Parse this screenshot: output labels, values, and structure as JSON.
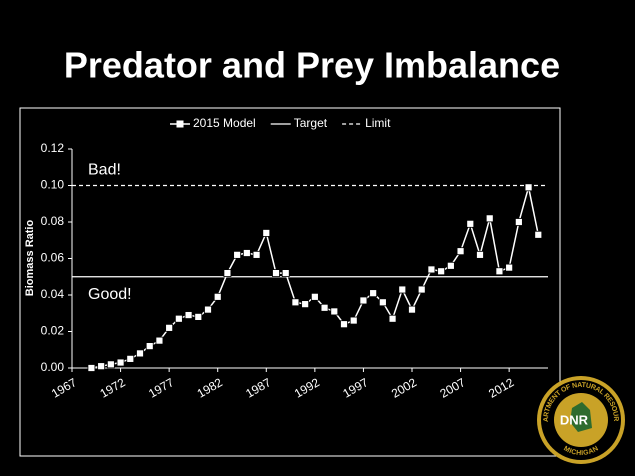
{
  "chart_data": {
    "type": "line",
    "title": "Predator and Prey Imbalance",
    "y_label": "Biomass Ratio",
    "x": [
      1969,
      1970,
      1971,
      1972,
      1973,
      1974,
      1975,
      1976,
      1977,
      1978,
      1979,
      1980,
      1981,
      1982,
      1983,
      1984,
      1985,
      1986,
      1987,
      1988,
      1989,
      1990,
      1991,
      1992,
      1993,
      1994,
      1995,
      1996,
      1997,
      1998,
      1999,
      2000,
      2001,
      2002,
      2003,
      2004,
      2005,
      2006,
      2007,
      2008,
      2009,
      2010,
      2011,
      2012,
      2013,
      2014,
      2015
    ],
    "series": [
      {
        "name": "2015 Model",
        "color": "#ffffff",
        "values": [
          0.0,
          0.001,
          0.002,
          0.003,
          0.005,
          0.008,
          0.012,
          0.015,
          0.022,
          0.027,
          0.029,
          0.028,
          0.032,
          0.039,
          0.052,
          0.062,
          0.063,
          0.062,
          0.074,
          0.052,
          0.052,
          0.036,
          0.035,
          0.039,
          0.033,
          0.031,
          0.024,
          0.026,
          0.037,
          0.041,
          0.036,
          0.027,
          0.043,
          0.032,
          0.043,
          0.054,
          0.053,
          0.056,
          0.064,
          0.079,
          0.062,
          0.082,
          0.053,
          0.055,
          0.08,
          0.099,
          0.073
        ]
      }
    ],
    "reference_lines": [
      {
        "name": "Target",
        "value": 0.05,
        "style": "solid",
        "color": "#ffffff"
      },
      {
        "name": "Limit",
        "value": 0.1,
        "style": "dashed",
        "color": "#ffffff"
      }
    ],
    "annotations": [
      "Bad!",
      "Good!"
    ],
    "xlim": [
      1967,
      2016
    ],
    "xticks": [
      1967,
      1972,
      1977,
      1982,
      1987,
      1992,
      1997,
      2002,
      2007,
      2012
    ],
    "ylim": [
      0,
      0.12
    ],
    "yticks": [
      {
        "value": 0,
        "label": "0.00"
      },
      {
        "value": 0.02,
        "label": "0.02"
      },
      {
        "value": 0.04,
        "label": "0.04"
      },
      {
        "value": 0.06,
        "label": "0.06"
      },
      {
        "value": 0.08,
        "label": "0.08"
      },
      {
        "value": 0.1,
        "label": "0.10"
      },
      {
        "value": 0.12,
        "label": "0.12"
      }
    ],
    "legend": "top"
  },
  "logo": {
    "ring_top": "DEPARTMENT OF NATURAL RESOURCES",
    "ring_bottom": "MICHIGAN",
    "center": "DNR"
  }
}
